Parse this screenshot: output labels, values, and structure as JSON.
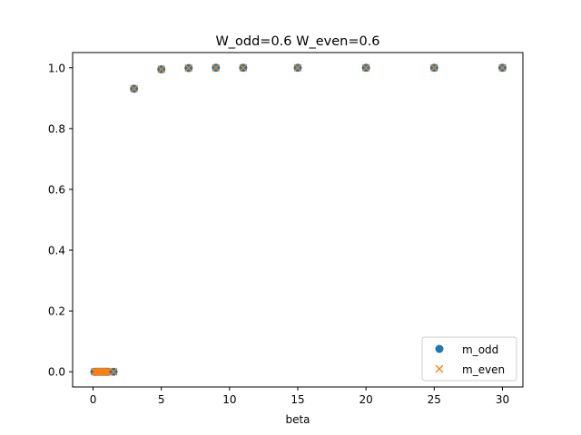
{
  "chart_data": {
    "type": "scatter",
    "title": "W_odd=0.6 W_even=0.6",
    "xlabel": "beta",
    "ylabel": "",
    "xlim": [
      -1.5,
      31.5
    ],
    "ylim": [
      -0.05,
      1.05
    ],
    "xticks": [
      0,
      5,
      10,
      15,
      20,
      25,
      30
    ],
    "xtick_labels": [
      "0",
      "5",
      "10",
      "15",
      "20",
      "25",
      "30"
    ],
    "yticks": [
      0.0,
      0.2,
      0.4,
      0.6,
      0.8,
      1.0
    ],
    "ytick_labels": [
      "0.0",
      "0.2",
      "0.4",
      "0.6",
      "0.8",
      "1.0"
    ],
    "grid": false,
    "legend_position": "lower-right",
    "x": [
      0.1,
      0.2,
      0.3,
      0.4,
      0.5,
      0.6,
      0.7,
      0.8,
      0.9,
      1.0,
      1.1,
      1.5,
      3,
      5,
      7,
      9,
      11,
      15,
      20,
      25,
      30
    ],
    "series": [
      {
        "name": "m_odd",
        "marker": "circle",
        "color": "#1f77b4",
        "values": [
          0,
          0,
          0,
          0,
          0,
          0,
          0,
          0,
          0,
          0,
          0,
          0,
          0.931,
          0.995,
          0.999,
          1.0,
          1.0,
          1.0,
          1.0,
          1.0,
          1.0
        ]
      },
      {
        "name": "m_even",
        "marker": "x",
        "color": "#ff7f0e",
        "values": [
          0,
          0,
          0,
          0,
          0,
          0,
          0,
          0,
          0,
          0,
          0,
          0,
          0.931,
          0.995,
          0.999,
          1.0,
          1.0,
          1.0,
          1.0,
          1.0,
          1.0
        ]
      }
    ]
  }
}
